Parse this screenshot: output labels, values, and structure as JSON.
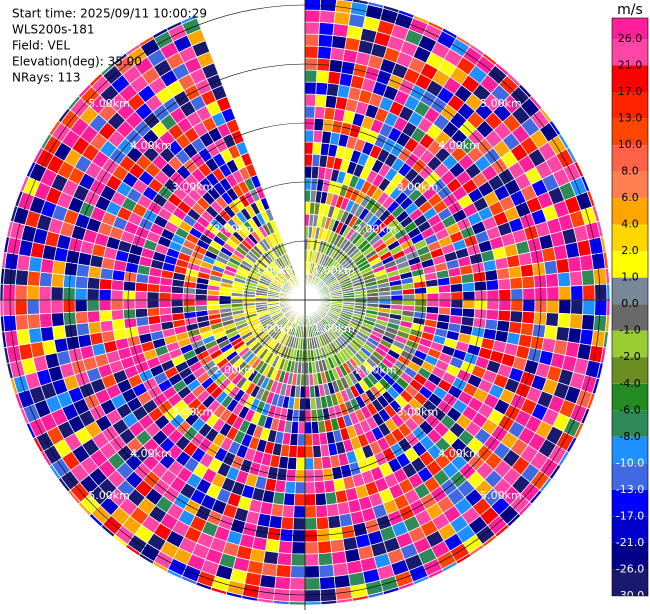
{
  "header": {
    "lines": [
      "Start time: 2025/09/11 10:00:29",
      "WLS200s-181",
      "Field: VEL",
      "Elevation(deg): 35.00",
      "NRays: 113"
    ]
  },
  "range_rings": {
    "labels": [
      "1.00km",
      "2.00km",
      "3.00km",
      "4.00km",
      "5.00km"
    ]
  },
  "colorbar": {
    "unit": "m/s",
    "labels": [
      "26.0",
      "21.0",
      "17.0",
      "13.0",
      "10.0",
      "8.0",
      "6.0",
      "4.0",
      "2.0",
      "1.0",
      "0.0",
      "-1.0",
      "-2.0",
      "-4.0",
      "-6.0",
      "-8.0",
      "-10.0",
      "-13.0",
      "-17.0",
      "-21.0",
      "-26.0",
      "-30.0"
    ],
    "colors": [
      "#ff1f9a",
      "#ff45a6",
      "#ff0000",
      "#ff2400",
      "#ff4500",
      "#ff6347",
      "#ff7f50",
      "#ffa500",
      "#ffd700",
      "#ffff00",
      "#778899",
      "#696969",
      "#9acd32",
      "#6b8e23",
      "#228b22",
      "#2e8b57",
      "#1e90ff",
      "#4169e1",
      "#0000ff",
      "#0000cd",
      "#00008b",
      "#191970"
    ]
  }
}
